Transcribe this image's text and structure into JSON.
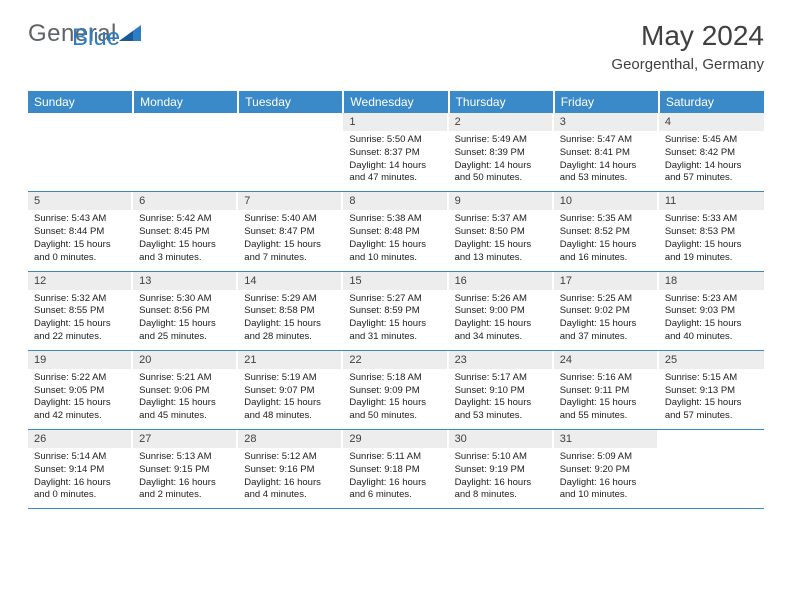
{
  "logo": {
    "part1": "General",
    "part2": "Blue"
  },
  "title": "May 2024",
  "location": "Georgenthal, Germany",
  "colors": {
    "header_bg": "#3a8ac9",
    "header_text": "#ffffff",
    "daynum_bg": "#ededed",
    "text": "#404040",
    "logo_blue": "#2d7dc4",
    "logo_gray": "#5f6368",
    "rule": "#3a8ac9"
  },
  "daysOfWeek": [
    "Sunday",
    "Monday",
    "Tuesday",
    "Wednesday",
    "Thursday",
    "Friday",
    "Saturday"
  ],
  "weeks": [
    [
      null,
      null,
      null,
      {
        "n": "1",
        "sr": "5:50 AM",
        "ss": "8:37 PM",
        "dl": "14 hours and 47 minutes."
      },
      {
        "n": "2",
        "sr": "5:49 AM",
        "ss": "8:39 PM",
        "dl": "14 hours and 50 minutes."
      },
      {
        "n": "3",
        "sr": "5:47 AM",
        "ss": "8:41 PM",
        "dl": "14 hours and 53 minutes."
      },
      {
        "n": "4",
        "sr": "5:45 AM",
        "ss": "8:42 PM",
        "dl": "14 hours and 57 minutes."
      }
    ],
    [
      {
        "n": "5",
        "sr": "5:43 AM",
        "ss": "8:44 PM",
        "dl": "15 hours and 0 minutes."
      },
      {
        "n": "6",
        "sr": "5:42 AM",
        "ss": "8:45 PM",
        "dl": "15 hours and 3 minutes."
      },
      {
        "n": "7",
        "sr": "5:40 AM",
        "ss": "8:47 PM",
        "dl": "15 hours and 7 minutes."
      },
      {
        "n": "8",
        "sr": "5:38 AM",
        "ss": "8:48 PM",
        "dl": "15 hours and 10 minutes."
      },
      {
        "n": "9",
        "sr": "5:37 AM",
        "ss": "8:50 PM",
        "dl": "15 hours and 13 minutes."
      },
      {
        "n": "10",
        "sr": "5:35 AM",
        "ss": "8:52 PM",
        "dl": "15 hours and 16 minutes."
      },
      {
        "n": "11",
        "sr": "5:33 AM",
        "ss": "8:53 PM",
        "dl": "15 hours and 19 minutes."
      }
    ],
    [
      {
        "n": "12",
        "sr": "5:32 AM",
        "ss": "8:55 PM",
        "dl": "15 hours and 22 minutes."
      },
      {
        "n": "13",
        "sr": "5:30 AM",
        "ss": "8:56 PM",
        "dl": "15 hours and 25 minutes."
      },
      {
        "n": "14",
        "sr": "5:29 AM",
        "ss": "8:58 PM",
        "dl": "15 hours and 28 minutes."
      },
      {
        "n": "15",
        "sr": "5:27 AM",
        "ss": "8:59 PM",
        "dl": "15 hours and 31 minutes."
      },
      {
        "n": "16",
        "sr": "5:26 AM",
        "ss": "9:00 PM",
        "dl": "15 hours and 34 minutes."
      },
      {
        "n": "17",
        "sr": "5:25 AM",
        "ss": "9:02 PM",
        "dl": "15 hours and 37 minutes."
      },
      {
        "n": "18",
        "sr": "5:23 AM",
        "ss": "9:03 PM",
        "dl": "15 hours and 40 minutes."
      }
    ],
    [
      {
        "n": "19",
        "sr": "5:22 AM",
        "ss": "9:05 PM",
        "dl": "15 hours and 42 minutes."
      },
      {
        "n": "20",
        "sr": "5:21 AM",
        "ss": "9:06 PM",
        "dl": "15 hours and 45 minutes."
      },
      {
        "n": "21",
        "sr": "5:19 AM",
        "ss": "9:07 PM",
        "dl": "15 hours and 48 minutes."
      },
      {
        "n": "22",
        "sr": "5:18 AM",
        "ss": "9:09 PM",
        "dl": "15 hours and 50 minutes."
      },
      {
        "n": "23",
        "sr": "5:17 AM",
        "ss": "9:10 PM",
        "dl": "15 hours and 53 minutes."
      },
      {
        "n": "24",
        "sr": "5:16 AM",
        "ss": "9:11 PM",
        "dl": "15 hours and 55 minutes."
      },
      {
        "n": "25",
        "sr": "5:15 AM",
        "ss": "9:13 PM",
        "dl": "15 hours and 57 minutes."
      }
    ],
    [
      {
        "n": "26",
        "sr": "5:14 AM",
        "ss": "9:14 PM",
        "dl": "16 hours and 0 minutes."
      },
      {
        "n": "27",
        "sr": "5:13 AM",
        "ss": "9:15 PM",
        "dl": "16 hours and 2 minutes."
      },
      {
        "n": "28",
        "sr": "5:12 AM",
        "ss": "9:16 PM",
        "dl": "16 hours and 4 minutes."
      },
      {
        "n": "29",
        "sr": "5:11 AM",
        "ss": "9:18 PM",
        "dl": "16 hours and 6 minutes."
      },
      {
        "n": "30",
        "sr": "5:10 AM",
        "ss": "9:19 PM",
        "dl": "16 hours and 8 minutes."
      },
      {
        "n": "31",
        "sr": "5:09 AM",
        "ss": "9:20 PM",
        "dl": "16 hours and 10 minutes."
      },
      null
    ]
  ],
  "labels": {
    "sunrise": "Sunrise:",
    "sunset": "Sunset:",
    "daylight": "Daylight:"
  }
}
